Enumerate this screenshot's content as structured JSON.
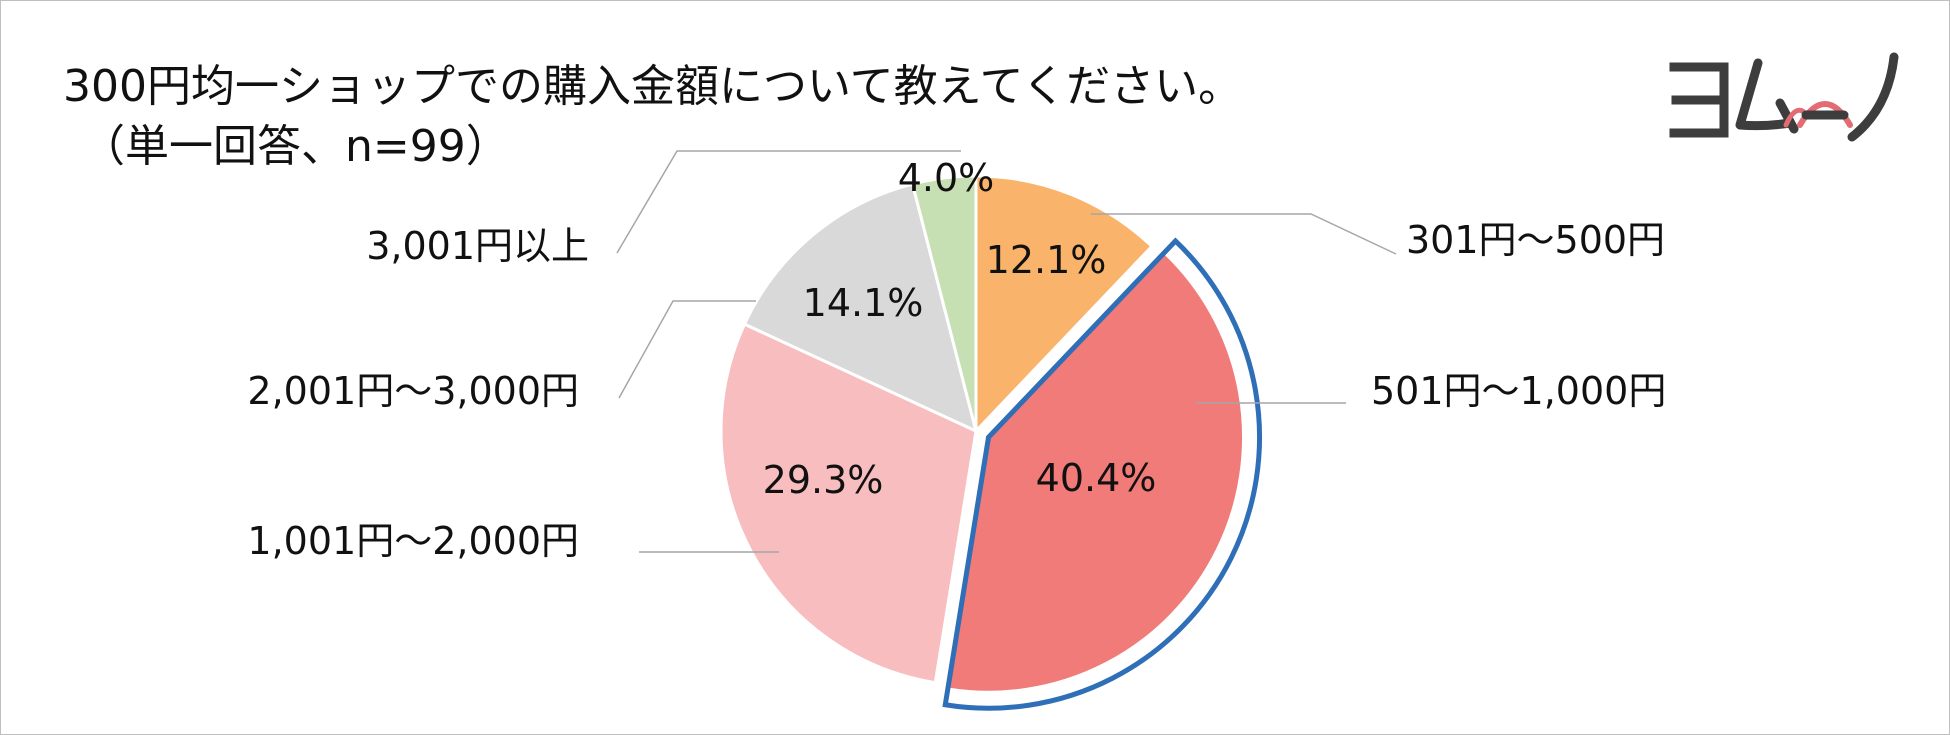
{
  "title": {
    "line1": "300円均一ショップでの購入金額について教えてください。",
    "line2": "（単一回答、n=99）"
  },
  "logo": {
    "text": "ヨムーノ",
    "icon": "yomuno-logo"
  },
  "chart_data": {
    "type": "pie",
    "title": "300円均一ショップでの購入金額について教えてください。（単一回答、n=99）",
    "start": "12 o'clock",
    "direction": "clockwise",
    "highlighted": "501円～1,000円",
    "highlight_color": "#2E6FB7",
    "slices": [
      {
        "label": "301円～500円",
        "value": 12.1,
        "display": "12.1%",
        "color": "#F9B36B"
      },
      {
        "label": "501円～1,000円",
        "value": 40.4,
        "display": "40.4%",
        "color": "#F07B78"
      },
      {
        "label": "1,001円～2,000円",
        "value": 29.3,
        "display": "29.3%",
        "color": "#F8BDBE"
      },
      {
        "label": "2,001円～3,000円",
        "value": 14.1,
        "display": "14.1%",
        "color": "#D9D9D9"
      },
      {
        "label": "3,001円以上",
        "value": 4.0,
        "display": "4.0%",
        "color": "#C6E0B4"
      }
    ]
  }
}
